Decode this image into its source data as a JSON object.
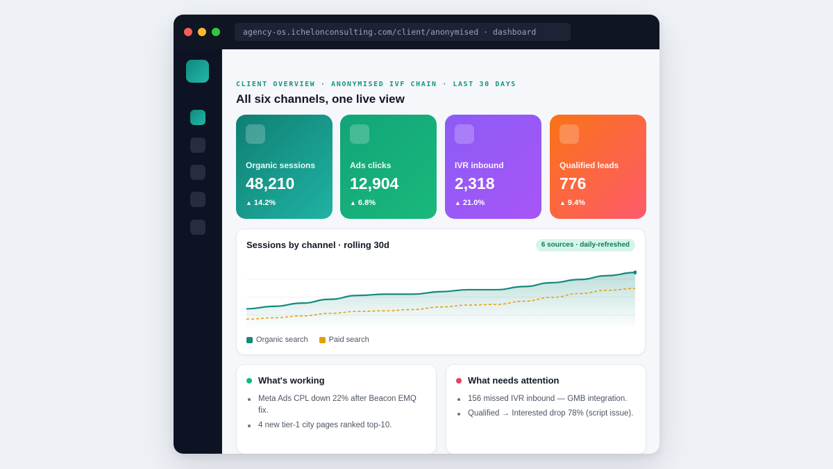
{
  "browser": {
    "url": "agency-os.ichelonconsulting.com/client/anonymised · dashboard"
  },
  "header": {
    "eyebrow": "CLIENT OVERVIEW · ANONYMISED IVF CHAIN · LAST 30 DAYS",
    "title": "All six channels, one live view"
  },
  "kpis": [
    {
      "label": "Organic sessions",
      "value": "48,210",
      "delta": "14.2%"
    },
    {
      "label": "Ads clicks",
      "value": "12,904",
      "delta": "6.8%"
    },
    {
      "label": "IVR inbound",
      "value": "2,318",
      "delta": "21.0%"
    },
    {
      "label": "Qualified leads",
      "value": "776",
      "delta": "9.4%"
    }
  ],
  "chart_card": {
    "title": "Sessions by channel · rolling 30d",
    "badge": "6 sources · daily-refreshed"
  },
  "chart_data": {
    "type": "area",
    "title": "Sessions by channel · rolling 30d",
    "xlabel": "",
    "ylabel": "",
    "grid": true,
    "legend": "bottom-left",
    "x": [
      1,
      2,
      3,
      4,
      5,
      6,
      7,
      8,
      9,
      10,
      11,
      12,
      13,
      14,
      15
    ],
    "ylim": [
      0,
      100
    ],
    "series": [
      {
        "name": "Organic search",
        "color": "#14897c",
        "style": "solid-area",
        "values": [
          32,
          36,
          41,
          47,
          53,
          55,
          55,
          59,
          62,
          62,
          67,
          73,
          78,
          84,
          89
        ]
      },
      {
        "name": "Paid search",
        "color": "#e59e0b",
        "style": "dashed",
        "values": [
          16,
          18,
          21,
          25,
          28,
          29,
          31,
          35,
          38,
          39,
          44,
          50,
          56,
          61,
          64
        ]
      }
    ]
  },
  "panels": {
    "working": {
      "title": "What's working",
      "color": "#10b981",
      "items": [
        "Meta Ads CPL down 22% after Beacon EMQ fix.",
        "4 new tier-1 city pages ranked top-10."
      ]
    },
    "attention": {
      "title": "What needs attention",
      "color": "#e8415b",
      "items": [
        "156 missed IVR inbound — GMB integration.",
        "Qualified → Interested drop 78% (script issue)."
      ]
    }
  },
  "icons": {
    "kpi_chip": "square-icon",
    "delta": "up-arrow-icon"
  }
}
